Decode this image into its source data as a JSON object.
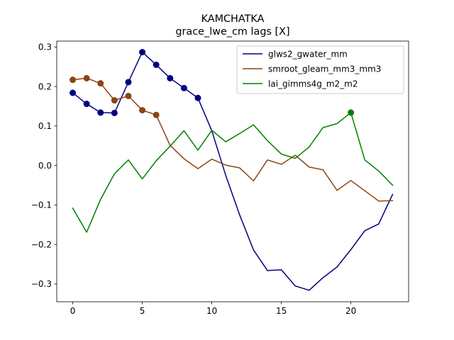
{
  "chart_data": {
    "type": "line",
    "title": "KAMCHATKA",
    "subtitle": "grace_lwe_cm lags [X]",
    "xlabel": "",
    "ylabel": "",
    "xlim": [
      -1.15,
      24.15
    ],
    "ylim": [
      -0.345,
      0.315
    ],
    "xticks": [
      0,
      5,
      10,
      15,
      20
    ],
    "yticks": [
      -0.3,
      -0.2,
      -0.1,
      0.0,
      0.1,
      0.2,
      0.3
    ],
    "ytick_labels": [
      "−0.3",
      "−0.2",
      "−0.1",
      "0.0",
      "0.1",
      "0.2",
      "0.3"
    ],
    "grid": false,
    "legend_position": "top-right",
    "x": [
      0,
      1,
      2,
      3,
      4,
      5,
      6,
      7,
      8,
      9,
      10,
      11,
      12,
      13,
      14,
      15,
      16,
      17,
      18,
      19,
      20,
      21,
      22,
      23
    ],
    "series": [
      {
        "name": "glws2_gwater_mm",
        "color": "#00007f",
        "values": [
          0.184,
          0.156,
          0.134,
          0.133,
          0.211,
          0.287,
          0.255,
          0.221,
          0.196,
          0.171,
          0.088,
          -0.025,
          -0.125,
          -0.214,
          -0.266,
          -0.264,
          -0.305,
          -0.316,
          -0.284,
          -0.257,
          -0.213,
          -0.165,
          -0.148,
          -0.073
        ],
        "markers": [
          0,
          1,
          2,
          3,
          4,
          5,
          6,
          7,
          8,
          9
        ]
      },
      {
        "name": "smroot_gleam_mm3_mm3",
        "color": "#8b4513",
        "values": [
          0.217,
          0.221,
          0.208,
          0.165,
          0.176,
          0.14,
          0.128,
          0.051,
          0.017,
          -0.008,
          0.016,
          0.001,
          -0.006,
          -0.039,
          0.014,
          0.003,
          0.026,
          -0.004,
          -0.011,
          -0.063,
          -0.038,
          -0.064,
          -0.09,
          -0.089
        ],
        "markers": [
          0,
          1,
          2,
          3,
          4,
          5,
          6
        ]
      },
      {
        "name": "lai_gimms4g_m2_m2",
        "color": "#008000",
        "values": [
          -0.108,
          -0.169,
          -0.086,
          -0.021,
          0.014,
          -0.034,
          0.012,
          0.049,
          0.088,
          0.039,
          0.089,
          0.06,
          0.081,
          0.103,
          0.063,
          0.029,
          0.018,
          0.047,
          0.096,
          0.106,
          0.134,
          0.014,
          -0.014,
          -0.05
        ],
        "markers": [
          20
        ]
      }
    ]
  }
}
